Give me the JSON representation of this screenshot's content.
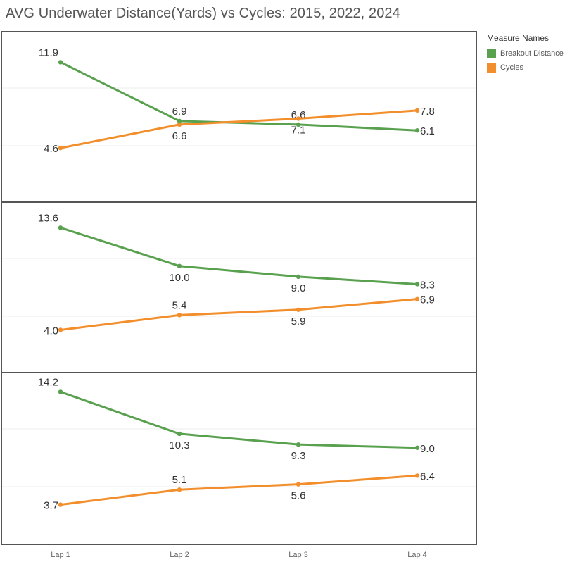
{
  "chart_data": [
    {
      "type": "line",
      "title": "AVG Underwater Distance(Yards) vs Cycles: 2015, 2022, 2024",
      "categories": [
        "Lap 1",
        "Lap 2",
        "Lap 3",
        "Lap 4"
      ],
      "series": [
        {
          "name": "Breakout Distance",
          "values": [
            11.9,
            6.9,
            6.6,
            6.1
          ]
        },
        {
          "name": "Cycles",
          "values": [
            4.6,
            6.6,
            7.1,
            7.8
          ]
        }
      ],
      "ylim": [
        0,
        14.5
      ],
      "grid": true,
      "legend": "right"
    },
    {
      "type": "line",
      "categories": [
        "Lap 1",
        "Lap 2",
        "Lap 3",
        "Lap 4"
      ],
      "series": [
        {
          "name": "Breakout Distance",
          "values": [
            13.6,
            10.0,
            9.0,
            8.3
          ]
        },
        {
          "name": "Cycles",
          "values": [
            4.0,
            5.4,
            5.9,
            6.9
          ]
        }
      ],
      "ylim": [
        0,
        16
      ],
      "grid": true
    },
    {
      "type": "line",
      "categories": [
        "Lap 1",
        "Lap 2",
        "Lap 3",
        "Lap 4"
      ],
      "series": [
        {
          "name": "Breakout Distance",
          "values": [
            14.2,
            10.3,
            9.3,
            9.0
          ]
        },
        {
          "name": "Cycles",
          "values": [
            3.7,
            5.1,
            5.6,
            6.4
          ]
        }
      ],
      "ylim": [
        0,
        16
      ],
      "grid": true
    }
  ],
  "legend": {
    "title": "Measure Names",
    "items": [
      {
        "label": "Breakout Distance",
        "color": "#59a14f"
      },
      {
        "label": "Cycles",
        "color": "#f28e2b"
      }
    ]
  },
  "colors": {
    "breakout": "#59a14f",
    "cycles": "#f28e2b",
    "frame": "#555555",
    "grid": "#ececec"
  }
}
